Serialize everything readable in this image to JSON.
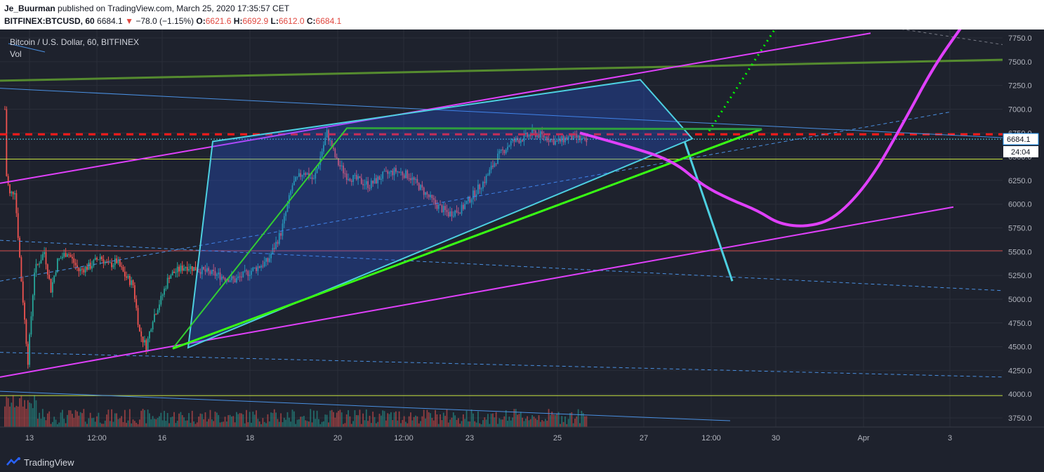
{
  "header": {
    "author": "Je_Buurman",
    "published_text": "published on TradingView.com, March 25, 2020 17:35:57 CET",
    "symbol": "BITFINEX:BTCUSD, 60",
    "last": "6684.1",
    "change_arrow": "▼",
    "change": "−78.0 (−1.15%)",
    "o_label": "O:",
    "o_value": "6621.6",
    "h_label": "H:",
    "h_value": "6692.9",
    "l_label": "L:",
    "l_value": "6612.0",
    "c_label": "C:",
    "c_value": "6684.1"
  },
  "legend": {
    "title": "Bitcoin / U.S. Dollar, 60, BITFINEX",
    "vol": "Vol"
  },
  "price_tag": {
    "price": "6684.1",
    "countdown": "24:04"
  },
  "footer": {
    "brand": "TradingView"
  },
  "colors": {
    "background": "#1e222d",
    "grid": "#2a2e39",
    "up": "#26a69a",
    "down": "#ef5350",
    "magenta": "#e040fb",
    "cyan": "#4dd0e1",
    "green": "#32cd32",
    "dark_green": "#558b2f",
    "blue_line": "#4a90e2",
    "red_dash": "#ff1a1a",
    "yellow_line": "#c6e040"
  },
  "chart_data": {
    "type": "candlestick",
    "y_axis": {
      "ticks": [
        "7750.0",
        "7500.0",
        "7250.0",
        "7000.0",
        "6750.0",
        "6500.0",
        "6250.0",
        "6000.0",
        "5750.0",
        "5500.0",
        "5250.0",
        "5000.0",
        "4750.0",
        "4500.0",
        "4250.0",
        "4000.0",
        "3750.0"
      ],
      "range": [
        3650,
        7850
      ]
    },
    "x_axis": {
      "ticks": [
        "13",
        "12:00",
        "16",
        "18",
        "20",
        "12:00",
        "23",
        "25",
        "27",
        "12:00",
        "30",
        "Apr",
        "3"
      ]
    },
    "ohlc_waypoints": [
      [
        0,
        7000
      ],
      [
        1,
        6300
      ],
      [
        3,
        6100
      ],
      [
        6,
        6150
      ],
      [
        10,
        5200
      ],
      [
        14,
        4350
      ],
      [
        18,
        5300
      ],
      [
        24,
        5500
      ],
      [
        28,
        5100
      ],
      [
        32,
        5400
      ],
      [
        38,
        5500
      ],
      [
        45,
        5300
      ],
      [
        52,
        5350
      ],
      [
        58,
        5450
      ],
      [
        63,
        5350
      ],
      [
        68,
        5400
      ],
      [
        73,
        5250
      ],
      [
        78,
        5150
      ],
      [
        82,
        4650
      ],
      [
        86,
        4500
      ],
      [
        90,
        4800
      ],
      [
        95,
        5000
      ],
      [
        100,
        5250
      ],
      [
        110,
        5350
      ],
      [
        120,
        5300
      ],
      [
        130,
        5250
      ],
      [
        140,
        5200
      ],
      [
        150,
        5300
      ],
      [
        160,
        5400
      ],
      [
        168,
        5700
      ],
      [
        175,
        6200
      ],
      [
        182,
        6350
      ],
      [
        188,
        6250
      ],
      [
        196,
        6750
      ],
      [
        202,
        6450
      ],
      [
        208,
        6300
      ],
      [
        215,
        6250
      ],
      [
        222,
        6200
      ],
      [
        230,
        6300
      ],
      [
        238,
        6350
      ],
      [
        246,
        6300
      ],
      [
        254,
        6150
      ],
      [
        262,
        6000
      ],
      [
        270,
        5900
      ],
      [
        278,
        5950
      ],
      [
        285,
        6100
      ],
      [
        292,
        6250
      ],
      [
        300,
        6500
      ],
      [
        308,
        6650
      ],
      [
        316,
        6700
      ],
      [
        322,
        6750
      ],
      [
        330,
        6700
      ],
      [
        336,
        6650
      ],
      [
        342,
        6700
      ],
      [
        348,
        6700
      ],
      [
        354,
        6650
      ]
    ],
    "levels": {
      "red_dashed": 6735,
      "cyan_dotted": 6684,
      "yellow_1": 6475,
      "red_solid": 5510,
      "yellow_2": 3985
    }
  }
}
